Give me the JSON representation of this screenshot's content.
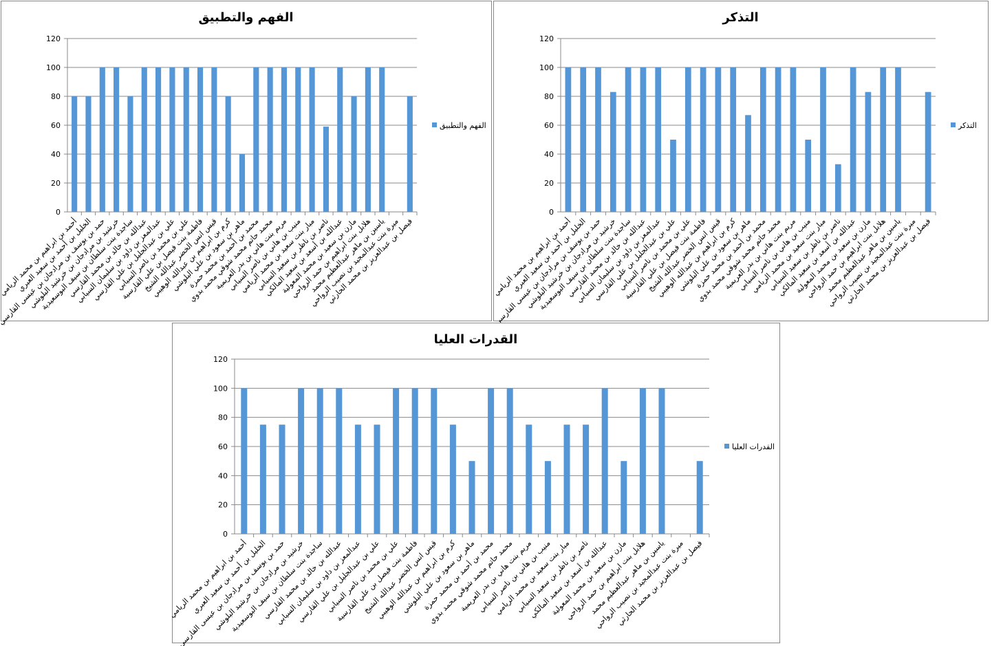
{
  "chart_data": [
    {
      "type": "bar",
      "title": "الفهم والتطبيق",
      "categories": [
        "أحمد بن ابراهيم بن محمد الريامي",
        "الخليل بن أحمد بن سعيد العبري",
        "حمد بن يوسف بن مرادجان بن عيسى القارسي",
        "خرشيد بن مرادجان بن خرشيد البلوشي",
        "ساجدة بنت سلطان بن سيف البوسعيدية",
        "عبدالله بن خالد بن محمد القارسي",
        "عبدالمعز بن داود بن سليمان السيابي",
        "علي بن عبدالجليل بن علي القارسي",
        "علي بن محمد بن ناصر السيابي",
        "فاطمة بنت فيصل بن علي القارسية",
        "قيس انس الخضر عبدالله الشيخ",
        "كرم بن ابراهيم بن عبدالله الوهيبي",
        "ماهر بن سعود بن علي البلوشي",
        "محمد بن أحمد بن محمد حمزة",
        "محمد حاتم محمد شوقي محمد بدوي",
        "مريم بنت هاني بن بدر العريمية",
        "منيب بن هاني بن ناصر السيابي",
        "مبار بنت سعيد بن محمد الريامي",
        "ناصر بن ناظر بن سعيد السيابي",
        "عبدالله بن أسعد بن سعيد المالكي",
        "مازن بن سعيد بن محمد المعولية",
        "هلابل بنت ابراهيم بن حمد الرواحي",
        "ياسين بن ماهر عبدالعظيم محمد",
        "ميرة بنت عبدالمجيد بن نصيب الرواحي",
        "فيصل بن عبدالعزيز بن محمد الحارثي"
      ],
      "series": [
        {
          "name": "الفهم والتطبيق",
          "color": "#5596d6",
          "values": [
            80,
            80,
            100,
            100,
            80,
            100,
            100,
            100,
            100,
            100,
            100,
            80,
            40,
            100,
            100,
            100,
            100,
            100,
            59,
            100,
            80,
            100,
            100,
            null,
            80
          ]
        }
      ],
      "ylim": [
        0,
        120
      ],
      "yticks": [
        0,
        20,
        40,
        60,
        80,
        100,
        120
      ],
      "grid": true,
      "legend": "right"
    },
    {
      "type": "bar",
      "title": "التذكر",
      "categories": [
        "أحمد بن ابراهيم بن محمد الريامي",
        "الخليل بن أحمد بن سعيد العبري",
        "حمد بن يوسف بن مرادجان بن عيسى القارسي",
        "خرشيد بن مرادجان بن خرشيد البلوشي",
        "ساجدة بنت سلطان بن سيف البوسعيدية",
        "عبدالله بن خالد بن محمد القارسي",
        "عبدالمعز بن داود بن سليمان السيابي",
        "علي بن عبدالجليل بن علي القارسي",
        "علي بن محمد بن ناصر السيابي",
        "فاطمة بنت فيصل بن علي القارسية",
        "قيس انس الخضر عبدالله الشيخ",
        "كرم بن ابراهيم بن عبدالله الوهيبي",
        "ماهر بن سعود بن علي البلوشي",
        "محمد بن أحمد بن محمد حمزة",
        "محمد حاتم محمد شوقي محمد بدوي",
        "مريم بنت هاني بن بدر العريمية",
        "منيب بن هاني بن ناصر السيابي",
        "مبار بنت سعيد بن محمد الريامي",
        "ناصر بن ناظر بن سعيد السيابي",
        "عبدالله بن أسعد بن سعيد المالكي",
        "مازن بن سعيد بن محمد المعولية",
        "هلابل بنت ابراهيم بن حمد الرواحي",
        "ياسين بن ماهر عبدالعظيم محمد",
        "ميرة بنت عبدالمجيد بن نصيب الرواحي",
        "فيصل بن عبدالعزيز بن محمد الحارثي"
      ],
      "series": [
        {
          "name": "التذكر",
          "color": "#5596d6",
          "values": [
            100,
            100,
            100,
            83,
            100,
            100,
            100,
            50,
            100,
            100,
            100,
            100,
            67,
            100,
            100,
            100,
            50,
            100,
            33,
            100,
            83,
            100,
            100,
            null,
            83
          ]
        }
      ],
      "ylim": [
        0,
        120
      ],
      "yticks": [
        0,
        20,
        40,
        60,
        80,
        100,
        120
      ],
      "grid": true,
      "legend": "right"
    },
    {
      "type": "bar",
      "title": "القدرات العليا",
      "categories": [
        "أحمد بن ابراهيم بن محمد الريامي",
        "الخليل بن أحمد بن سعيد العبري",
        "حمد بن يوسف بن مرادجان بن عيسى القارسي",
        "خرشيد بن مرادجان بن خرشيد البلوشي",
        "ساجدة بنت سلطان بن سيف البوسعيدية",
        "عبدالله بن خالد بن محمد القارسي",
        "عبدالمعز بن داود بن سليمان السيابي",
        "علي بن عبدالجليل بن علي القارسي",
        "علي بن محمد بن ناصر السيابي",
        "فاطمة بنت فيصل بن علي القارسية",
        "قيس انس الخضر عبدالله الشيخ",
        "كرم بن ابراهيم بن عبدالله الوهيبي",
        "ماهر بن سعود بن علي البلوشي",
        "محمد بن أحمد بن محمد حمزة",
        "محمد حاتم محمد شوقي محمد بدوي",
        "مريم بنت هاني بن بدر العريمية",
        "منيب بن هاني بن ناصر السيابي",
        "مبار بنت سعيد بن محمد الريامي",
        "ناصر بن ناظر بن سعيد السيابي",
        "عبدالله بن أسعد بن سعيد المالكي",
        "مازن بن سعيد بن محمد المعولية",
        "هلابل بنت ابراهيم بن حمد الرواحي",
        "ياسين بن ماهر عبدالعظيم محمد",
        "ميرة بنت عبدالمجيد بن نصيب الرواحي",
        "فيصل بن عبدالعزيز بن محمد الحارثي"
      ],
      "series": [
        {
          "name": "القدرات العليا",
          "color": "#5596d6",
          "values": [
            100,
            75,
            75,
            100,
            100,
            100,
            75,
            75,
            100,
            100,
            100,
            75,
            50,
            100,
            100,
            75,
            50,
            75,
            75,
            100,
            50,
            100,
            100,
            null,
            50
          ]
        }
      ],
      "ylim": [
        0,
        120
      ],
      "yticks": [
        0,
        20,
        40,
        60,
        80,
        100,
        120
      ],
      "grid": true,
      "legend": "right"
    }
  ]
}
